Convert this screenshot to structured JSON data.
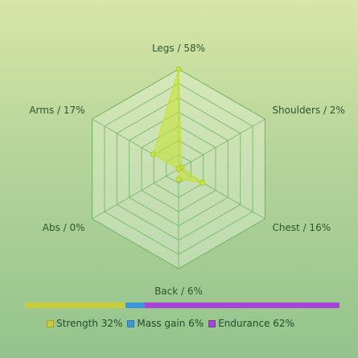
{
  "chart_data": {
    "type": "radar",
    "axes": [
      {
        "name": "Legs",
        "value": 58,
        "label": "Legs / 58%"
      },
      {
        "name": "Shoulders",
        "value": 2,
        "label": "Shoulders / 2%"
      },
      {
        "name": "Chest",
        "value": 16,
        "label": "Chest / 16%"
      },
      {
        "name": "Back",
        "value": 6,
        "label": "Back / 6%"
      },
      {
        "name": "Abs",
        "value": 0,
        "label": "Abs / 0%"
      },
      {
        "name": "Arms",
        "value": 17,
        "label": "Arms / 17%"
      }
    ],
    "max": 58,
    "rings": 7,
    "grid": true,
    "series_color": "#c5e23a",
    "grid_color": "#6db35f",
    "breakdown": [
      {
        "name": "Strength",
        "value": 32,
        "label": "Strength 32%",
        "color": "#c9cc3a"
      },
      {
        "name": "Mass gain",
        "value": 6,
        "label": "Mass gain 6%",
        "color": "#3c97d6"
      },
      {
        "name": "Endurance",
        "value": 62,
        "label": "Endurance 62%",
        "color": "#a645d8"
      }
    ]
  }
}
